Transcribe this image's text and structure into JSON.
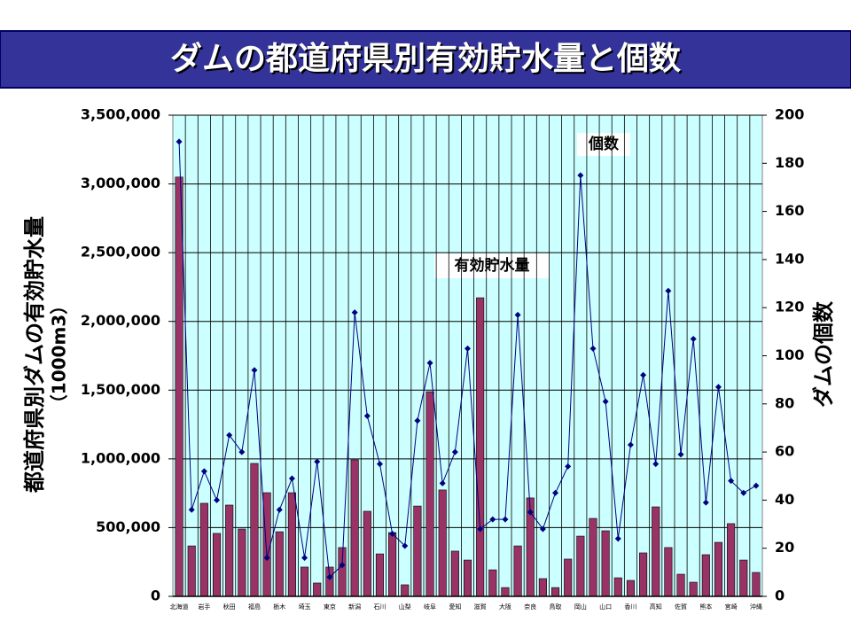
{
  "chart_data": {
    "type": "bar_line",
    "title": "ダムの都道府県別有効貯水量と個数",
    "y_label": [
      "都道府県別ダムの有効貯水量",
      "（1000m3）"
    ],
    "y2_label": "ダムの個数",
    "categories": [
      "北海道",
      null,
      "岩手",
      null,
      "秋田",
      null,
      "福島",
      null,
      "栃木",
      null,
      "埼玉",
      null,
      "東京",
      null,
      "新潟",
      null,
      "石川",
      null,
      "山梨",
      null,
      "岐阜",
      null,
      "愛知",
      null,
      "滋賀",
      null,
      "大阪",
      null,
      "奈良",
      null,
      "鳥取",
      null,
      "岡山",
      null,
      "山口",
      null,
      "香川",
      null,
      "高知",
      null,
      "佐賀",
      null,
      "熊本",
      null,
      "宮崎",
      null,
      "沖縄"
    ],
    "series": [
      {
        "name": "有効貯水量",
        "type": "bar",
        "color": "#993366",
        "values": [
          3050000,
          367000,
          677000,
          458000,
          664000,
          490000,
          967000,
          754000,
          470000,
          754000,
          213000,
          97000,
          213000,
          355000,
          993000,
          619000,
          309000,
          464000,
          84000,
          657000,
          1489000,
          774000,
          329000,
          264000,
          2172000,
          193000,
          64000,
          367000,
          716000,
          129000,
          64000,
          271000,
          438000,
          567000,
          477000,
          135000,
          116000,
          316000,
          651000,
          355000,
          161000,
          103000,
          303000,
          393000,
          529000,
          264000,
          174000
        ]
      },
      {
        "name": "個数",
        "type": "line",
        "axis": "y2",
        "color": "#000080",
        "values": [
          189,
          36,
          52,
          40,
          67,
          60,
          94,
          16,
          36,
          49,
          16,
          56,
          8,
          13,
          118,
          75,
          55,
          26,
          21,
          73,
          97,
          47,
          60,
          103,
          28,
          32,
          32,
          117,
          35,
          28,
          43,
          54,
          175,
          103,
          81,
          24,
          63,
          92,
          55,
          127,
          59,
          107,
          39,
          87,
          48,
          43,
          46
        ]
      }
    ],
    "ylim": [
      0,
      3500000
    ],
    "yticks": [
      0,
      {
        "value": 500000,
        "label": "500,000"
      },
      {
        "value": 1000000,
        "label": "1,000,000"
      },
      {
        "value": 1500000,
        "label": "1,500,000"
      },
      {
        "value": 2000000,
        "label": "2,000,000"
      },
      {
        "value": 2500000,
        "label": "2,500,000"
      },
      {
        "value": 3000000,
        "label": "3,000,000"
      },
      {
        "value": 3500000,
        "label": "3,500,000"
      }
    ],
    "y2lim": [
      0,
      200
    ],
    "y2ticks": [
      0,
      20,
      40,
      60,
      80,
      100,
      120,
      140,
      160,
      180,
      200
    ],
    "grid": true
  }
}
